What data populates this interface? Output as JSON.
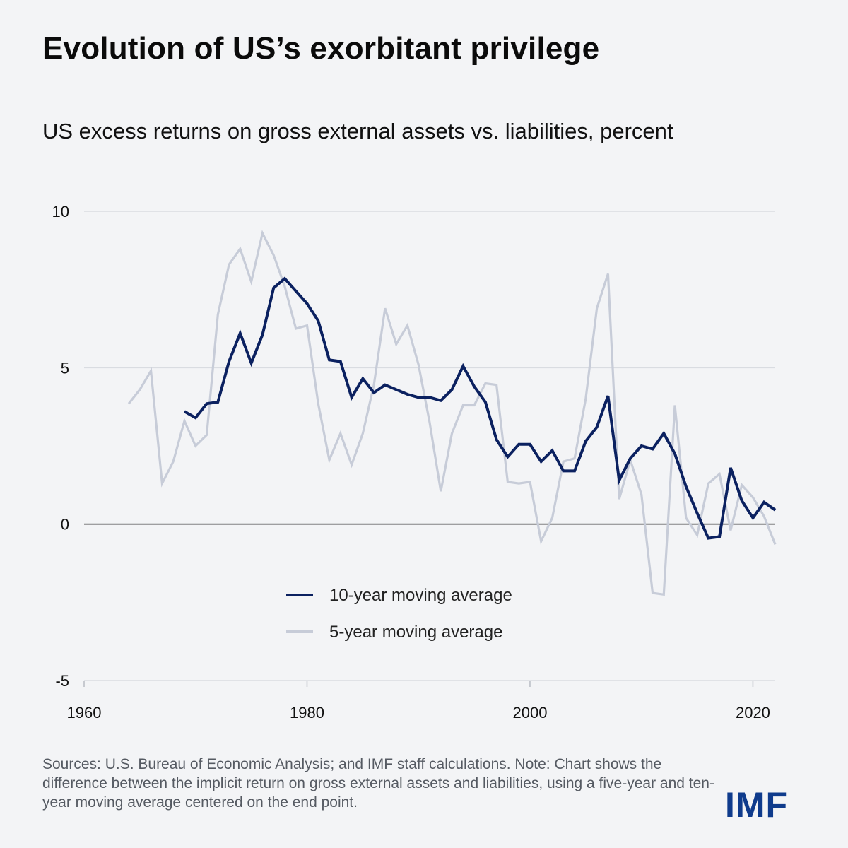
{
  "title": "Evolution of US’s exorbitant privilege",
  "subtitle": "US excess returns on gross external assets vs. liabilities, percent",
  "source_note": "Sources: U.S. Bureau of Economic Analysis; and IMF staff calculations. Note: Chart shows the difference between the implicit return on gross external assets and liabilities, using a five-year and ten-year moving average centered on the end point.",
  "logo_text": "IMF",
  "colors": {
    "ten_year": "#0b2160",
    "five_year": "#c7ccd8",
    "grid": "#d9dce1",
    "zero_line": "#111111",
    "background": "#f3f4f6"
  },
  "chart_data": {
    "type": "line",
    "title": "Evolution of US’s exorbitant privilege",
    "ylabel": "percent",
    "xlabel": "",
    "xlim": [
      1960,
      2022
    ],
    "ylim": [
      -5,
      10
    ],
    "x_ticks": [
      1960,
      1980,
      2000,
      2020
    ],
    "y_ticks": [
      10,
      5,
      0,
      -5
    ],
    "grid": "horizontal",
    "legend_position": "bottom-center",
    "series": [
      {
        "name": "5-year moving average",
        "color": "#c7ccd8",
        "x": [
          1964,
          1965,
          1966,
          1967,
          1968,
          1969,
          1970,
          1971,
          1972,
          1973,
          1974,
          1975,
          1976,
          1977,
          1978,
          1979,
          1980,
          1981,
          1982,
          1983,
          1984,
          1985,
          1986,
          1987,
          1988,
          1989,
          1990,
          1991,
          1992,
          1993,
          1994,
          1995,
          1996,
          1997,
          1998,
          1999,
          2000,
          2001,
          2002,
          2003,
          2004,
          2005,
          2006,
          2007,
          2008,
          2009,
          2010,
          2011,
          2012,
          2013,
          2014,
          2015,
          2016,
          2017,
          2018,
          2019,
          2020,
          2021,
          2022
        ],
        "values": [
          3.85,
          4.3,
          4.9,
          1.3,
          2.0,
          3.3,
          2.5,
          2.85,
          6.7,
          8.3,
          8.8,
          7.75,
          9.3,
          8.6,
          7.6,
          6.25,
          6.35,
          3.85,
          2.05,
          2.9,
          1.9,
          2.9,
          4.45,
          6.9,
          5.75,
          6.35,
          5.1,
          3.25,
          1.05,
          2.9,
          3.8,
          3.8,
          4.5,
          4.45,
          1.35,
          1.3,
          1.35,
          -0.55,
          0.2,
          2.0,
          2.1,
          4.0,
          6.9,
          8.0,
          0.8,
          2.05,
          0.95,
          -2.2,
          -2.25,
          3.8,
          0.2,
          -0.35,
          1.3,
          1.6,
          -0.2,
          1.25,
          0.85,
          0.25,
          -0.65
        ]
      },
      {
        "name": "10-year moving average",
        "color": "#0b2160",
        "x": [
          1969,
          1970,
          1971,
          1972,
          1973,
          1974,
          1975,
          1976,
          1977,
          1978,
          1979,
          1980,
          1981,
          1982,
          1983,
          1984,
          1985,
          1986,
          1987,
          1988,
          1989,
          1990,
          1991,
          1992,
          1993,
          1994,
          1995,
          1996,
          1997,
          1998,
          1999,
          2000,
          2001,
          2002,
          2003,
          2004,
          2005,
          2006,
          2007,
          2008,
          2009,
          2010,
          2011,
          2012,
          2013,
          2014,
          2015,
          2016,
          2017,
          2018,
          2019,
          2020,
          2021,
          2022
        ],
        "values": [
          3.6,
          3.4,
          3.85,
          3.9,
          5.2,
          6.1,
          5.15,
          6.05,
          7.55,
          7.85,
          7.45,
          7.05,
          6.5,
          5.25,
          5.2,
          4.05,
          4.65,
          4.2,
          4.45,
          4.3,
          4.15,
          4.05,
          4.05,
          3.95,
          4.3,
          5.05,
          4.4,
          3.9,
          2.7,
          2.15,
          2.55,
          2.55,
          2.0,
          2.35,
          1.7,
          1.7,
          2.65,
          3.1,
          4.1,
          1.4,
          2.1,
          2.5,
          2.4,
          2.9,
          2.25,
          1.2,
          0.35,
          -0.45,
          -0.4,
          1.8,
          0.75,
          0.2,
          0.7,
          0.45
        ]
      }
    ]
  }
}
